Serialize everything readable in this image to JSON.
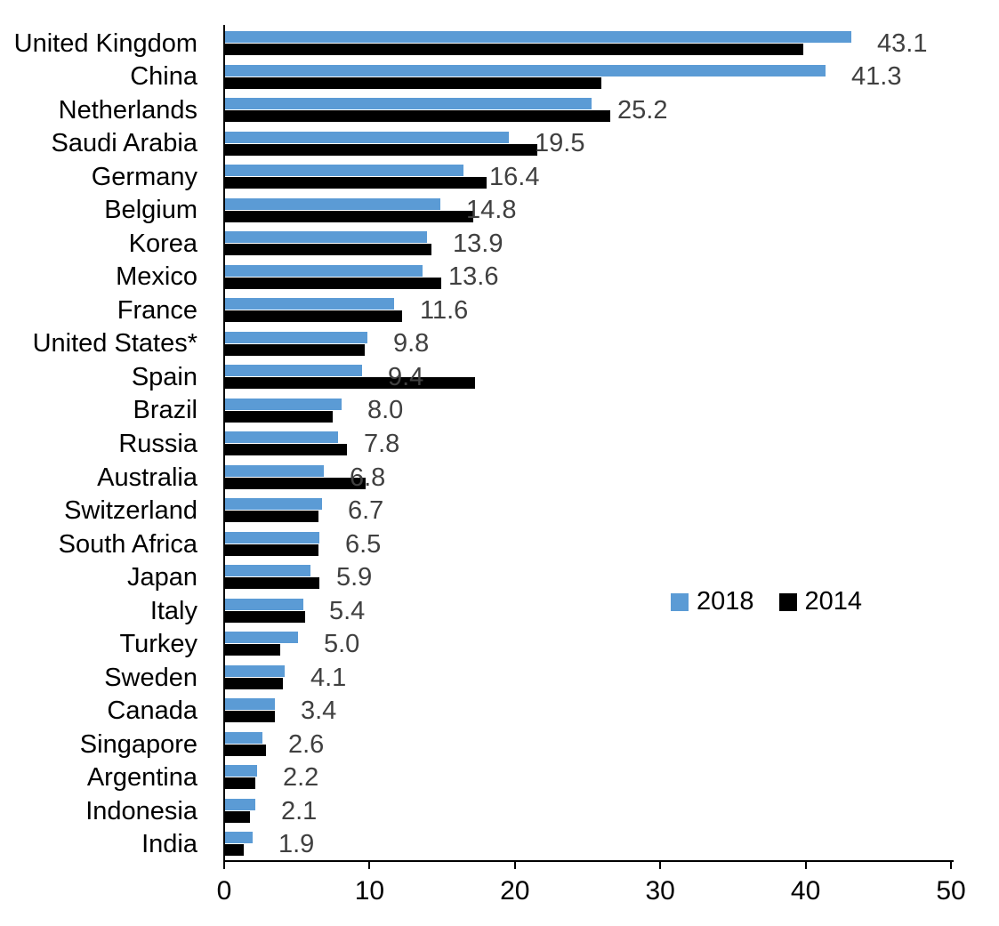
{
  "chart_data": {
    "type": "bar",
    "orientation": "horizontal",
    "title": "",
    "xlabel": "",
    "ylabel": "",
    "xlim": [
      0,
      50
    ],
    "x_ticks": [
      "0",
      "10",
      "20",
      "30",
      "40",
      "50"
    ],
    "grid": false,
    "legend_position": "middle-right",
    "background": "#FFFFFF",
    "axis_color": "#000000",
    "value_label_color": "#404040",
    "categories": [
      "United Kingdom",
      "China",
      "Netherlands",
      "Saudi Arabia",
      "Germany",
      "Belgium",
      "Korea",
      "Mexico",
      "France",
      "United States*",
      "Spain",
      "Brazil",
      "Russia",
      "Australia",
      "Switzerland",
      "South Africa",
      "Japan",
      "Italy",
      "Turkey",
      "Sweden",
      "Canada",
      "Singapore",
      "Argentina",
      "Indonesia",
      "India"
    ],
    "series": [
      {
        "name": "2018",
        "color": "#5B9BD5",
        "values": [
          43.1,
          41.3,
          25.2,
          19.5,
          16.4,
          14.8,
          13.9,
          13.6,
          11.6,
          9.8,
          9.4,
          8.0,
          7.8,
          6.8,
          6.7,
          6.5,
          5.9,
          5.4,
          5.0,
          4.1,
          3.4,
          2.6,
          2.2,
          2.1,
          1.9
        ]
      },
      {
        "name": "2014",
        "color": "#000000",
        "values": [
          39.8,
          25.9,
          26.5,
          21.5,
          18.0,
          17.1,
          14.2,
          14.9,
          12.2,
          9.6,
          17.2,
          7.4,
          8.4,
          9.7,
          6.4,
          6.4,
          6.5,
          5.5,
          3.8,
          4.0,
          3.4,
          2.8,
          2.1,
          1.7,
          1.3
        ]
      }
    ],
    "value_labels": [
      "43.1",
      "41.3",
      "25.2",
      "19.5",
      "16.4",
      "14.8",
      "13.9",
      "13.6",
      "11.6",
      "9.8",
      "9.4",
      "8.0",
      "7.8",
      "6.8",
      "6.7",
      "6.5",
      "5.9",
      "5.4",
      "5.0",
      "4.1",
      "3.4",
      "2.6",
      "2.2",
      "2.1",
      "1.9"
    ],
    "value_labels_series": "2018"
  }
}
